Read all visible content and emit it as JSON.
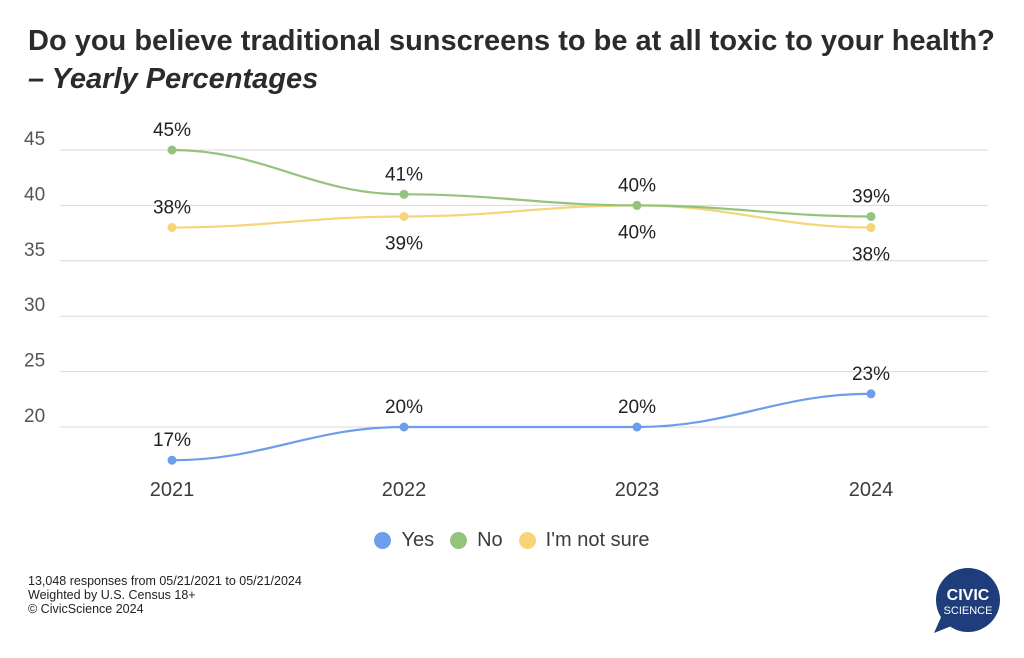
{
  "header": {
    "title": "Do you believe traditional sunscreens to be at all toxic to your health?",
    "subtitle": "– Yearly Percentages"
  },
  "chart_data": {
    "type": "line",
    "x": [
      "2021",
      "2022",
      "2023",
      "2024"
    ],
    "ylim": [
      16,
      46
    ],
    "yticks": [
      20,
      25,
      30,
      35,
      40,
      45
    ],
    "grid": true,
    "legend_position": "bottom",
    "series": [
      {
        "name": "Yes",
        "color": "#6d9eeb",
        "values": [
          17,
          20,
          20,
          23
        ],
        "labels": [
          "17%",
          "20%",
          "20%",
          "23%"
        ],
        "label_side": [
          "above",
          "above",
          "above",
          "above"
        ]
      },
      {
        "name": "No",
        "color": "#93c47d",
        "values": [
          45,
          41,
          40,
          39
        ],
        "labels": [
          "45%",
          "41%",
          "40%",
          "39%"
        ],
        "label_side": [
          "above",
          "above",
          "above",
          "above"
        ]
      },
      {
        "name": "I'm not sure",
        "color": "#f6d47a",
        "values": [
          38,
          39,
          40,
          38
        ],
        "labels": [
          "38%",
          "39%",
          "40%",
          "38%"
        ],
        "label_side": [
          "above",
          "below",
          "below",
          "below"
        ]
      }
    ]
  },
  "footer": {
    "line1": "13,048 responses from 05/21/2021 to 05/21/2024",
    "line2": "Weighted by U.S. Census 18+",
    "line3": "© CivicScience 2024"
  },
  "logo": {
    "line1": "CIVIC",
    "line2": "SCIENCE",
    "color": "#1f3d7a"
  }
}
